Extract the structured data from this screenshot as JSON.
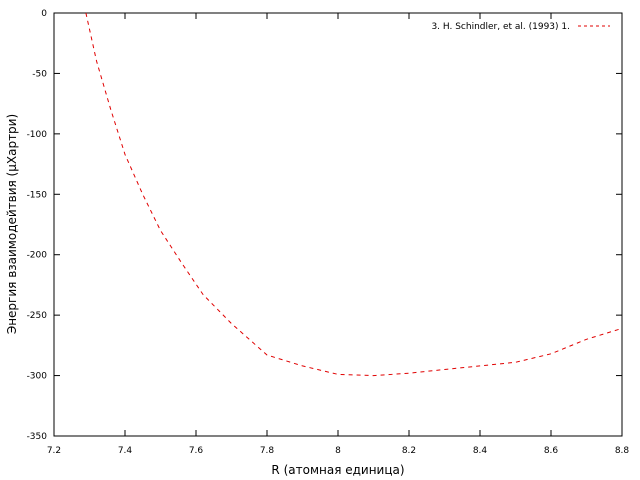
{
  "chart_data": {
    "type": "line",
    "title": "",
    "xlabel": "R (атомная единица)",
    "ylabel": "Энергия взаимодейтвия (μХартри)",
    "xlim": [
      7.2,
      8.8
    ],
    "ylim": [
      -350,
      0
    ],
    "x_ticks": [
      7.2,
      7.4,
      7.6,
      7.8,
      8,
      8.2,
      8.4,
      8.6,
      8.8
    ],
    "x_tick_labels": [
      "7.2",
      "7.4",
      "7.6",
      "7.8",
      "8",
      "8.2",
      "8.4",
      "8.6",
      "8.8"
    ],
    "y_ticks": [
      0,
      -50,
      -100,
      -150,
      -200,
      -250,
      -300,
      -350
    ],
    "y_tick_labels": [
      "0",
      "-50",
      "-100",
      "-150",
      "-200",
      "-250",
      "-300",
      "-350"
    ],
    "grid": false,
    "legend_position": "top-right",
    "series": [
      {
        "name": "3. H. Schindler,  et al. (1993) 1.",
        "color": "#e00000",
        "dash": "dashed",
        "x": [
          7.29,
          7.32,
          7.36,
          7.4,
          7.45,
          7.5,
          7.56,
          7.62,
          7.7,
          7.8,
          7.9,
          8.0,
          8.1,
          8.2,
          8.3,
          8.4,
          8.5,
          8.6,
          8.7,
          8.8
        ],
        "y": [
          0,
          -40,
          -80,
          -117,
          -150,
          -180,
          -207,
          -233,
          -257,
          -283,
          -292,
          -299,
          -300,
          -298,
          -295,
          -292,
          -289,
          -282,
          -270,
          -261
        ]
      }
    ]
  }
}
